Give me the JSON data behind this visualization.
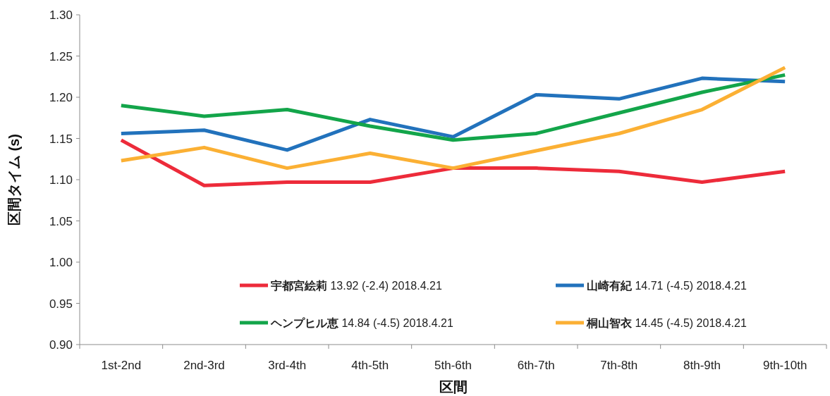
{
  "chart_data": {
    "type": "line",
    "xlabel": "区間",
    "ylabel": "区間タイム (s)",
    "categories": [
      "1st-2nd",
      "2nd-3rd",
      "3rd-4th",
      "4th-5th",
      "5th-6th",
      "6th-7th",
      "7th-8th",
      "8th-9th",
      "9th-10th"
    ],
    "ylim": [
      0.9,
      1.3
    ],
    "yticks": [
      {
        "value": 0.9,
        "label": "0.90"
      },
      {
        "value": 0.95,
        "label": "0.95"
      },
      {
        "value": 1.0,
        "label": "1.00"
      },
      {
        "value": 1.05,
        "label": "1.05"
      },
      {
        "value": 1.1,
        "label": "1.10"
      },
      {
        "value": 1.15,
        "label": "1.15"
      },
      {
        "value": 1.2,
        "label": "1.20"
      },
      {
        "value": 1.25,
        "label": "1.25"
      },
      {
        "value": 1.3,
        "label": "1.30"
      }
    ],
    "legend": "bottom",
    "series": [
      {
        "name": "宇都宮絵莉 13.92 (-2.4) 2018.4.21",
        "color": "#ed2b3a",
        "values": [
          1.148,
          1.093,
          1.097,
          1.097,
          1.114,
          1.114,
          1.11,
          1.097,
          1.11
        ]
      },
      {
        "name": "山崎有紀 14.71 (-4.5) 2018.4.21",
        "color": "#2272bc",
        "values": [
          1.156,
          1.16,
          1.136,
          1.173,
          1.152,
          1.203,
          1.198,
          1.223,
          1.219
        ]
      },
      {
        "name": "ヘンプヒル恵 14.84 (-4.5) 2018.4.21",
        "color": "#13a54a",
        "values": [
          1.19,
          1.177,
          1.185,
          1.165,
          1.148,
          1.156,
          1.181,
          1.206,
          1.227
        ]
      },
      {
        "name": "桐山智衣 14.45 (-4.5) 2018.4.21",
        "color": "#fbb034",
        "values": [
          1.123,
          1.139,
          1.114,
          1.132,
          1.114,
          1.135,
          1.156,
          1.185,
          1.236
        ]
      }
    ]
  }
}
